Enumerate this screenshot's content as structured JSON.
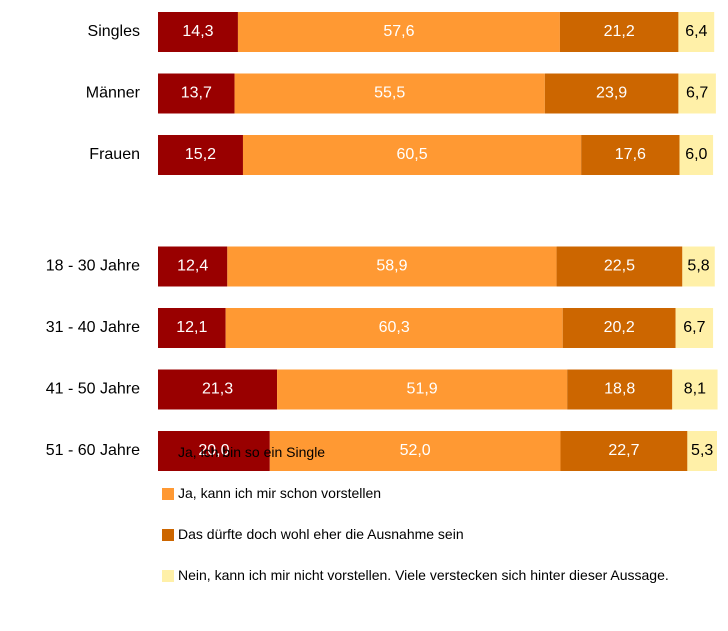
{
  "chart_data": {
    "type": "stacked-barh",
    "categories": [
      "Singles",
      "Männer",
      "Frauen",
      "18 - 30 Jahre",
      "31 - 40 Jahre",
      "41 - 50 Jahre",
      "51 - 60 Jahre"
    ],
    "xlim": [
      0,
      100
    ],
    "series": [
      {
        "name": "Ja, ich bin so ein Single",
        "color": "#990000",
        "label_color": "#ffffff",
        "values": [
          14.3,
          13.7,
          15.2,
          12.4,
          12.1,
          21.3,
          20.0
        ],
        "value_labels": [
          "14,3",
          "13,7",
          "15,2",
          "12,4",
          "12,1",
          "21,3",
          "20,0"
        ]
      },
      {
        "name": "Ja, kann ich mir schon vorstellen",
        "color": "#ff9933",
        "label_color": "#ffffff",
        "values": [
          57.6,
          55.5,
          60.5,
          58.9,
          60.3,
          51.9,
          52.0
        ],
        "value_labels": [
          "57,6",
          "55,5",
          "60,5",
          "58,9",
          "60,3",
          "51,9",
          "52,0"
        ]
      },
      {
        "name": "Das dürfte doch wohl eher die Ausnahme sein",
        "color": "#cc6600",
        "label_color": "#ffffff",
        "values": [
          21.2,
          23.9,
          17.6,
          22.5,
          20.2,
          18.8,
          22.7
        ],
        "value_labels": [
          "21,2",
          "23,9",
          "17,6",
          "22,5",
          "20,2",
          "18,8",
          "22,7"
        ]
      },
      {
        "name": "Nein, kann ich mir nicht vorstellen. Viele verstecken sich hinter dieser Aussage.",
        "color": "#fff0a8",
        "label_color": "#000000",
        "values": [
          6.4,
          6.7,
          6.0,
          5.8,
          6.7,
          8.1,
          5.3
        ],
        "value_labels": [
          "6,4",
          "6,7",
          "6,0",
          "5,8",
          "6,7",
          "8,1",
          "5,3"
        ]
      }
    ]
  }
}
